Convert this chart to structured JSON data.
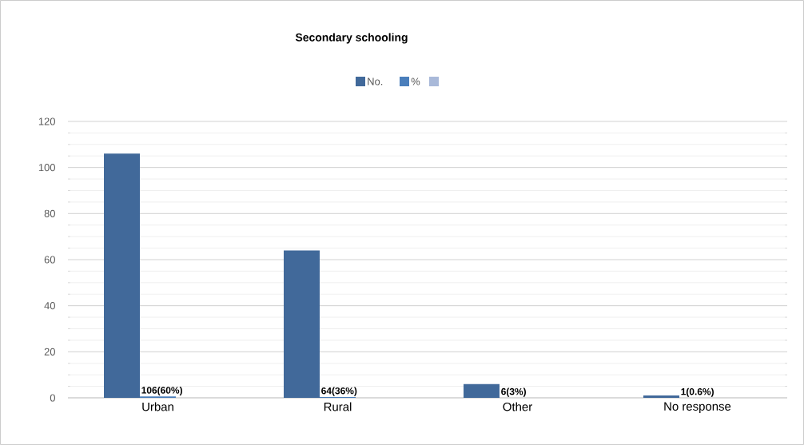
{
  "chart_data": {
    "type": "bar",
    "title": "Secondary schooling",
    "categories": [
      "Urban",
      "Rural",
      "Other",
      "No response"
    ],
    "series": [
      {
        "name": "No.",
        "color": "#41699a",
        "values": [
          106,
          64,
          6,
          1
        ]
      },
      {
        "name": "%",
        "color": "#4a7ebb",
        "values": [
          0.6,
          0.36,
          0.03,
          0.006
        ],
        "value_labels": [
          "106(60%)",
          "64(36%)",
          "6(3%)",
          "1(0.6%)"
        ]
      },
      {
        "color": "#a9b9d9",
        "values": [
          null,
          null,
          null,
          null
        ]
      }
    ],
    "ylim": [
      0,
      120
    ],
    "yticks": [
      0,
      20,
      40,
      60,
      80,
      100,
      120
    ],
    "grid": "y",
    "legend": "top"
  }
}
